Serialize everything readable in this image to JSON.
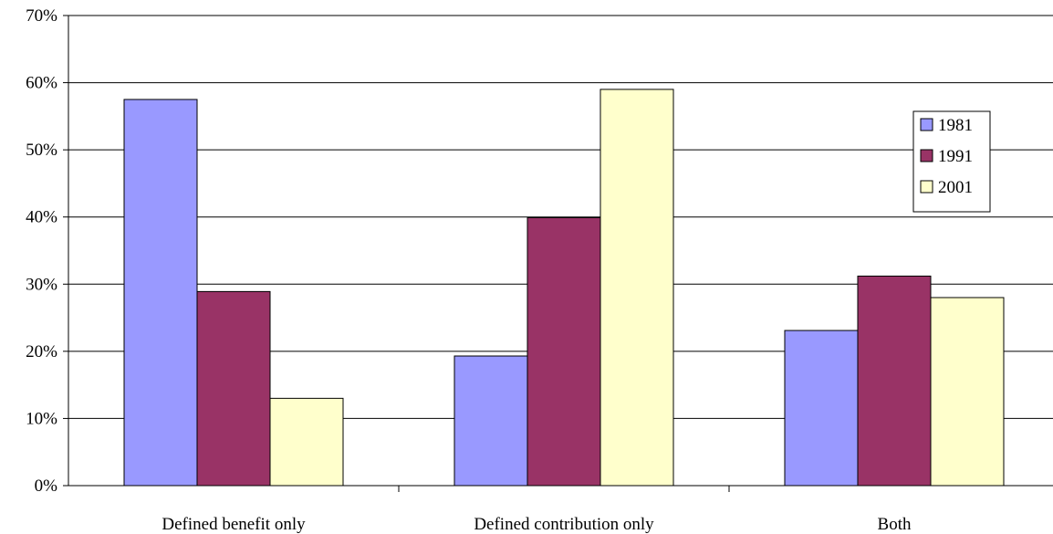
{
  "chart_data": {
    "type": "bar",
    "title": "",
    "xlabel": "",
    "ylabel": "",
    "ylim": [
      0,
      70
    ],
    "yticks": [
      "0%",
      "10%",
      "20%",
      "30%",
      "40%",
      "50%",
      "60%",
      "70%"
    ],
    "categories": [
      "Defined benefit only",
      "Defined contribution only",
      "Both"
    ],
    "series": [
      {
        "name": "1981",
        "color": "#9999ff",
        "values": [
          57.5,
          19.3,
          23.1
        ]
      },
      {
        "name": "1991",
        "color": "#993366",
        "values": [
          28.9,
          39.9,
          31.2
        ]
      },
      {
        "name": "2001",
        "color": "#ffffcc",
        "values": [
          13.0,
          59.0,
          28.0
        ]
      }
    ],
    "grid": true,
    "legend": "right"
  }
}
